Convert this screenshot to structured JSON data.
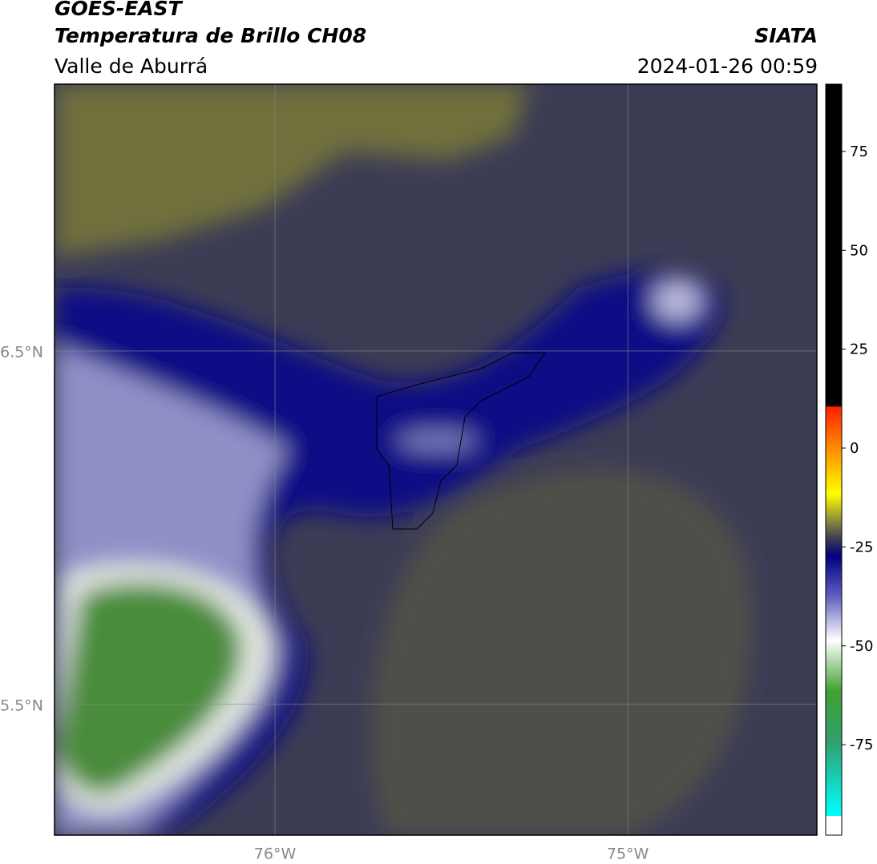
{
  "header": {
    "title": "GOES-EAST",
    "subtitle": "Temperatura de Brillo CH08",
    "region": "Valle de Aburrá",
    "source": "SIATA",
    "datetime": "2024-01-26 00:59"
  },
  "map": {
    "xlim": [
      -76.625,
      -74.464
    ],
    "ylim": [
      5.13,
      7.255
    ],
    "xticks": [
      {
        "value": -76,
        "label": "76°W"
      },
      {
        "value": -75,
        "label": "75°W"
      }
    ],
    "yticks": [
      {
        "value": 6.5,
        "label": "6.5°N"
      },
      {
        "value": 5.5,
        "label": "5.5°N"
      }
    ]
  },
  "colorbar": {
    "lim": [
      -93,
      92
    ],
    "ticks": [
      75,
      50,
      25,
      0,
      -25,
      -50,
      -75
    ]
  }
}
